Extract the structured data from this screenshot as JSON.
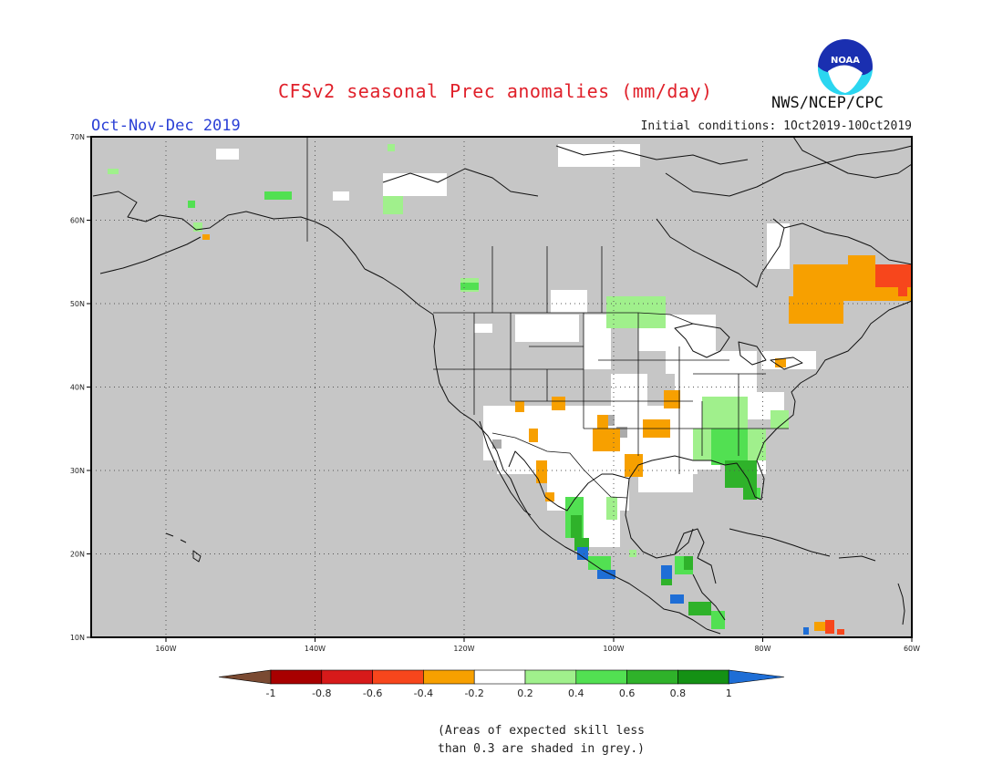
{
  "header": {
    "title": "CFSv2 seasonal Prec anomalies (mm/day)",
    "period": "Oct-Nov-Dec 2019",
    "initial_conditions": "Initial conditions: 1Oct2019-10Oct2019",
    "agency": "NWS/NCEP/CPC",
    "logo_text": "NOAA"
  },
  "axes": {
    "lat_labels": [
      "70N",
      "60N",
      "50N",
      "40N",
      "30N",
      "20N",
      "10N"
    ],
    "lon_labels": [
      "160W",
      "140W",
      "120W",
      "100W",
      "80W",
      "60W"
    ]
  },
  "colorbar": {
    "tick_labels": [
      "-1",
      "-0.8",
      "-0.6",
      "-0.4",
      "-0.2",
      "0.2",
      "0.4",
      "0.6",
      "0.8",
      "1"
    ],
    "colors": {
      "below_min": "#7a4a32",
      "bins": [
        "#a80000",
        "#d71a1a",
        "#f7461c",
        "#f7a000",
        "#ffffff",
        "#a0f08c",
        "#52e052",
        "#2fb22a",
        "#149114"
      ],
      "above_max": "#1e6ed6",
      "skill_mask": "#c6c6c6"
    }
  },
  "footnote": {
    "line1": "(Areas of expected skill less",
    "line2": "than 0.3 are shaded in grey.)"
  }
}
